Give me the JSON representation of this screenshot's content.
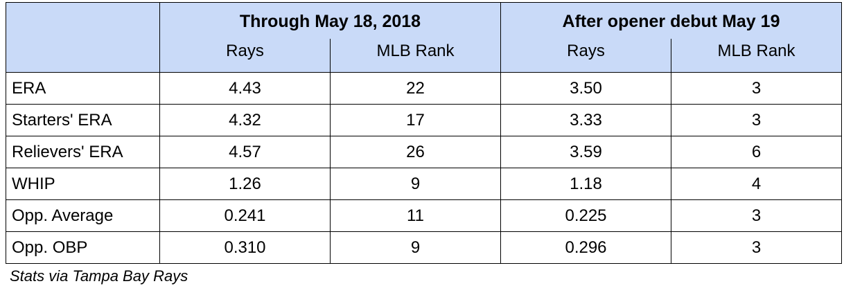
{
  "table": {
    "groups": [
      {
        "label": "Through May 18, 2018"
      },
      {
        "label": "After opener debut May 19"
      }
    ],
    "subheaders": [
      "Rays",
      "MLB Rank",
      "Rays",
      "MLB Rank"
    ],
    "rows": [
      {
        "metric": "ERA",
        "before_rays": "4.43",
        "before_rank": "22",
        "after_rays": "3.50",
        "after_rank": "3"
      },
      {
        "metric": "Starters' ERA",
        "before_rays": "4.32",
        "before_rank": "17",
        "after_rays": "3.33",
        "after_rank": "3"
      },
      {
        "metric": "Relievers' ERA",
        "before_rays": "4.57",
        "before_rank": "26",
        "after_rays": "3.59",
        "after_rank": "6"
      },
      {
        "metric": "WHIP",
        "before_rays": "1.26",
        "before_rank": "9",
        "after_rays": "1.18",
        "after_rank": "4"
      },
      {
        "metric": "Opp. Average",
        "before_rays": "0.241",
        "before_rank": "11",
        "after_rays": "0.225",
        "after_rank": "3"
      },
      {
        "metric": "Opp. OBP",
        "before_rays": "0.310",
        "before_rank": "9",
        "after_rays": "0.296",
        "after_rank": "3"
      }
    ]
  },
  "caption": "Stats via Tampa Bay Rays",
  "colors": {
    "header_background": "#c9daf8",
    "border": "#000000"
  }
}
